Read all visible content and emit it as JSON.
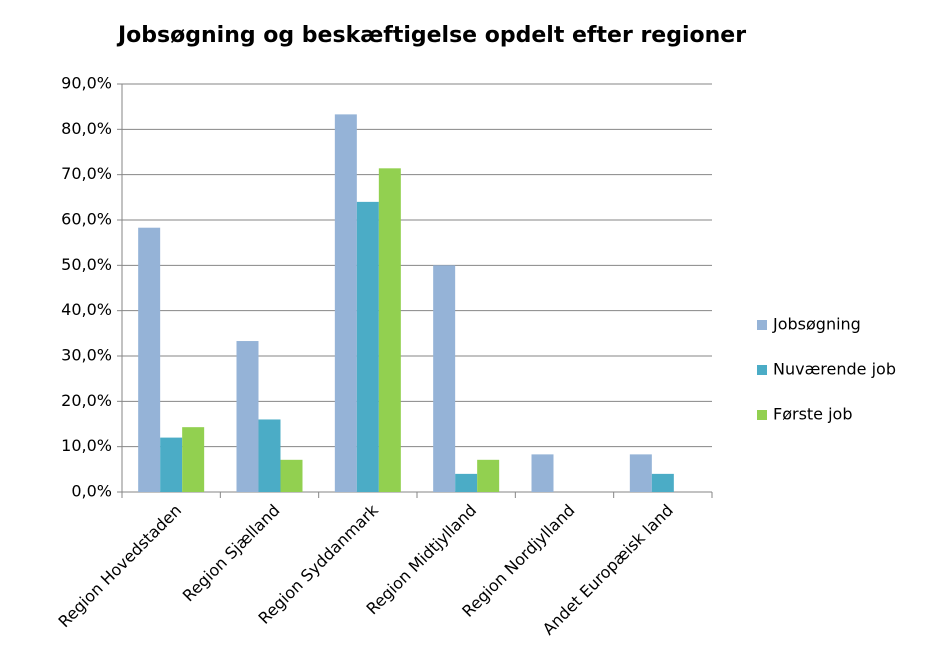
{
  "chart_data": {
    "type": "bar",
    "title": "Jobsøgning og beskæftigelse opdelt efter regioner",
    "categories": [
      "Region Hovedstaden",
      "Region Sjælland",
      "Region Syddanmark",
      "Region Midtjylland",
      "Region Nordjylland",
      "Andet Europæisk land"
    ],
    "series": [
      {
        "name": "Jobsøgning",
        "color": "#95b3d7",
        "values": [
          58.3,
          33.3,
          83.3,
          50,
          8.3,
          8.3
        ]
      },
      {
        "name": "Nuværende job",
        "color": "#4bacc6",
        "values": [
          12,
          16,
          64,
          4,
          0,
          4
        ]
      },
      {
        "name": "Første job",
        "color": "#92d050",
        "values": [
          14.3,
          7.1,
          71.4,
          7.1,
          0,
          0
        ]
      }
    ],
    "ylim": [
      0,
      90
    ],
    "yticks": [
      {
        "value": 0,
        "label": "0,0%"
      },
      {
        "value": 10,
        "label": "10,0%"
      },
      {
        "value": 20,
        "label": "20,0%"
      },
      {
        "value": 30,
        "label": "30,0%"
      },
      {
        "value": 40,
        "label": "40,0%"
      },
      {
        "value": 50,
        "label": "50,0%"
      },
      {
        "value": 60,
        "label": "60,0%"
      },
      {
        "value": 70,
        "label": "70,0%"
      },
      {
        "value": 80,
        "label": "80,0%"
      },
      {
        "value": 90,
        "label": "90,0%"
      }
    ],
    "grid": true,
    "legend": "right"
  }
}
